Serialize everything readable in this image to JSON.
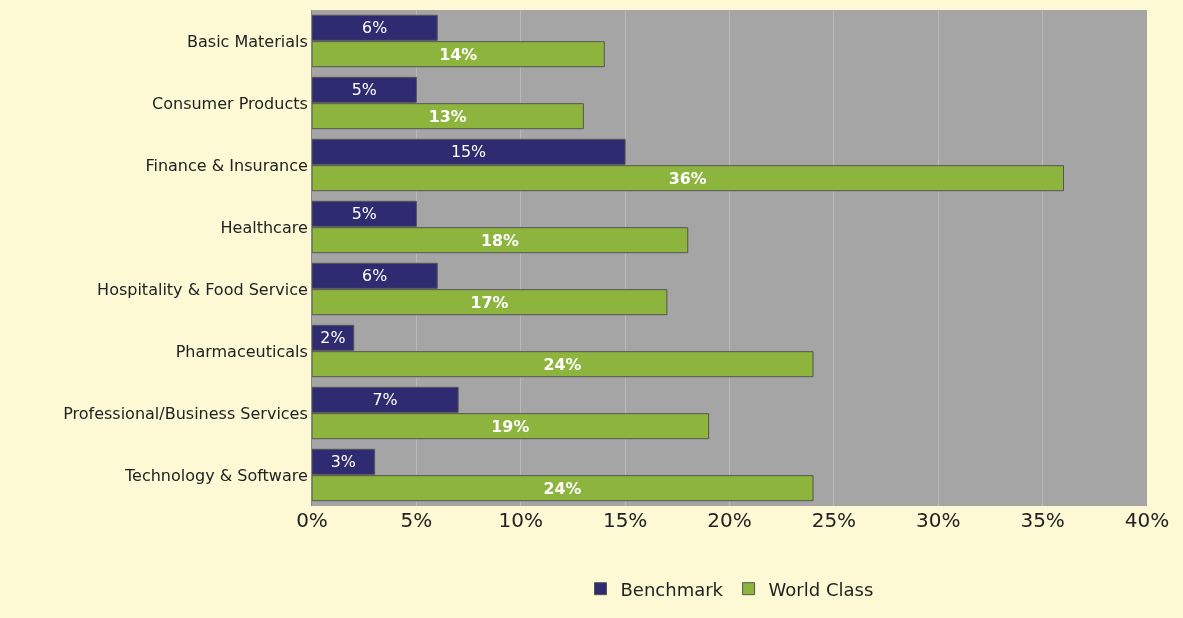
{
  "chart_data": {
    "type": "bar",
    "orientation": "horizontal",
    "categories": [
      "Basic Materials",
      "Consumer Products",
      "Finance & Insurance",
      "Healthcare",
      "Hospitality & Food Service",
      "Pharmaceuticals",
      "Professional/Business Services",
      "Technology & Software"
    ],
    "series": [
      {
        "name": "Benchmark",
        "color": "#2e2b70",
        "values": [
          6,
          5,
          15,
          5,
          6,
          2,
          7,
          3
        ],
        "value_labels": [
          "6%",
          "5%",
          "15%",
          "5%",
          "6%",
          "2%",
          "7%",
          "3%"
        ]
      },
      {
        "name": "World Class",
        "color": "#8db43c",
        "values": [
          14,
          13,
          36,
          18,
          17,
          24,
          19,
          24
        ],
        "value_labels": [
          "14%",
          "13%",
          "36%",
          "18%",
          "17%",
          "24%",
          "19%",
          "24%"
        ]
      }
    ],
    "xlim": [
      0,
      40
    ],
    "xticks": [
      {
        "value": 0,
        "label": "0%"
      },
      {
        "value": 5,
        "label": "5%"
      },
      {
        "value": 10,
        "label": "10%"
      },
      {
        "value": 15,
        "label": "15%"
      },
      {
        "value": 20,
        "label": "20%"
      },
      {
        "value": 25,
        "label": "25%"
      },
      {
        "value": 30,
        "label": "30%"
      },
      {
        "value": 35,
        "label": "35%"
      },
      {
        "value": 40,
        "label": "40%"
      }
    ],
    "grid": "x",
    "legend": "bottom"
  }
}
